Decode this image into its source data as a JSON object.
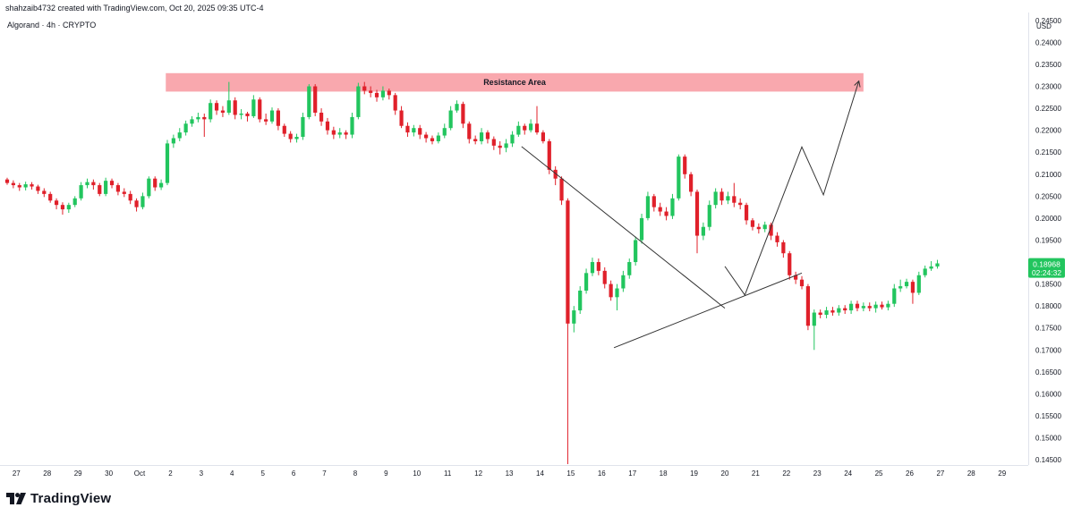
{
  "header": {
    "credit": "shahzaib4732 created with TradingView.com, Oct 20, 2025 09:35 UTC-4",
    "symbol": "Algorand · 4h · CRYPTO"
  },
  "brand": {
    "name": "TradingView",
    "icon": "tradingview-logo-icon"
  },
  "colors": {
    "up": "#22c55e",
    "down": "#e0202a",
    "resistance_fill": "#f9a8ae",
    "price_badge": "#22c55e",
    "line": "#333333"
  },
  "chart_data": {
    "type": "candlestick",
    "currency": "USD",
    "x_labels": [
      "27",
      "28",
      "29",
      "30",
      "Oct",
      "2",
      "3",
      "4",
      "5",
      "6",
      "7",
      "8",
      "9",
      "10",
      "11",
      "12",
      "13",
      "14",
      "15",
      "16",
      "17",
      "18",
      "19",
      "20",
      "21",
      "22",
      "23",
      "24",
      "25",
      "26",
      "27",
      "28",
      "29"
    ],
    "y_ticks": [
      "0.24500",
      "0.24000",
      "0.23500",
      "0.23000",
      "0.22500",
      "0.22000",
      "0.21500",
      "0.21000",
      "0.20500",
      "0.20000",
      "0.19500",
      "0.19000",
      "0.18500",
      "0.18000",
      "0.17500",
      "0.17000",
      "0.16500",
      "0.16000",
      "0.15500",
      "0.15000",
      "0.14500"
    ],
    "ylim": [
      0.1438,
      0.2468
    ],
    "xlim_days": [
      -0.3,
      32.85
    ],
    "current_price": {
      "price": "0.18968",
      "countdown": "02:24:32",
      "value": 0.18968
    },
    "resistance": {
      "label": "Resistance Area",
      "x0": 4.85,
      "x1": 27.5,
      "y0": 0.2288,
      "y1": 0.233
    },
    "trendlines": [
      {
        "name": "descending-resistance-line",
        "points": [
          [
            16.4,
            0.2163
          ],
          [
            23.0,
            0.1795
          ]
        ]
      },
      {
        "name": "ascending-support-line",
        "points": [
          [
            19.4,
            0.1705
          ],
          [
            25.5,
            0.1875
          ]
        ]
      }
    ],
    "projection": [
      [
        23.0,
        0.189
      ],
      [
        23.65,
        0.1825
      ],
      [
        25.5,
        0.2162
      ],
      [
        26.2,
        0.2053
      ],
      [
        27.35,
        0.2312
      ]
    ],
    "candles": [
      [
        -0.3,
        0.2088,
        0.208,
        0.2092,
        0.2076
      ],
      [
        -0.1,
        0.208,
        0.2075,
        0.2086,
        0.2068
      ],
      [
        0.1,
        0.2075,
        0.207,
        0.208,
        0.2062
      ],
      [
        0.3,
        0.207,
        0.2077,
        0.2083,
        0.2063
      ],
      [
        0.5,
        0.2077,
        0.2072,
        0.2082,
        0.2065
      ],
      [
        0.7,
        0.2072,
        0.2062,
        0.2076,
        0.2055
      ],
      [
        0.9,
        0.2062,
        0.2055,
        0.2068,
        0.2048
      ],
      [
        1.1,
        0.2055,
        0.204,
        0.206,
        0.2035
      ],
      [
        1.3,
        0.204,
        0.203,
        0.2045,
        0.202
      ],
      [
        1.5,
        0.203,
        0.202,
        0.2036,
        0.2008
      ],
      [
        1.7,
        0.202,
        0.203,
        0.2035,
        0.2012
      ],
      [
        1.9,
        0.203,
        0.2045,
        0.205,
        0.2025
      ],
      [
        2.1,
        0.2045,
        0.2075,
        0.2082,
        0.204
      ],
      [
        2.3,
        0.2075,
        0.2082,
        0.209,
        0.2068
      ],
      [
        2.5,
        0.2082,
        0.2075,
        0.2088,
        0.2065
      ],
      [
        2.7,
        0.2075,
        0.2055,
        0.208,
        0.205
      ],
      [
        2.9,
        0.2055,
        0.2085,
        0.2092,
        0.205
      ],
      [
        3.1,
        0.2085,
        0.2075,
        0.209,
        0.2068
      ],
      [
        3.3,
        0.2075,
        0.206,
        0.208,
        0.2052
      ],
      [
        3.5,
        0.206,
        0.2055,
        0.2068,
        0.2048
      ],
      [
        3.7,
        0.2055,
        0.204,
        0.2062,
        0.2032
      ],
      [
        3.9,
        0.204,
        0.2025,
        0.2045,
        0.2015
      ],
      [
        4.1,
        0.2025,
        0.205,
        0.2058,
        0.202
      ],
      [
        4.3,
        0.205,
        0.209,
        0.2095,
        0.2045
      ],
      [
        4.5,
        0.209,
        0.207,
        0.2095,
        0.2062
      ],
      [
        4.7,
        0.207,
        0.208,
        0.2088,
        0.2064
      ],
      [
        4.9,
        0.208,
        0.217,
        0.2178,
        0.2075
      ],
      [
        5.1,
        0.217,
        0.2182,
        0.219,
        0.216
      ],
      [
        5.3,
        0.2182,
        0.2195,
        0.2205,
        0.2175
      ],
      [
        5.5,
        0.2195,
        0.2215,
        0.2222,
        0.2188
      ],
      [
        5.7,
        0.2215,
        0.2225,
        0.2232,
        0.2208
      ],
      [
        5.9,
        0.2225,
        0.223,
        0.224,
        0.2218
      ],
      [
        6.1,
        0.223,
        0.2225,
        0.2238,
        0.2185
      ],
      [
        6.3,
        0.2225,
        0.2262,
        0.227,
        0.2218
      ],
      [
        6.5,
        0.2262,
        0.2245,
        0.2268,
        0.2235
      ],
      [
        6.7,
        0.2245,
        0.224,
        0.2255,
        0.223
      ],
      [
        6.9,
        0.224,
        0.2268,
        0.231,
        0.2235
      ],
      [
        7.1,
        0.2268,
        0.2235,
        0.2275,
        0.2225
      ],
      [
        7.3,
        0.2235,
        0.2238,
        0.2248,
        0.2225
      ],
      [
        7.5,
        0.2238,
        0.2232,
        0.2242,
        0.222
      ],
      [
        7.7,
        0.2232,
        0.227,
        0.228,
        0.2228
      ],
      [
        7.9,
        0.227,
        0.2225,
        0.2275,
        0.2218
      ],
      [
        8.1,
        0.2225,
        0.222,
        0.2238,
        0.2212
      ],
      [
        8.3,
        0.222,
        0.2245,
        0.2252,
        0.2215
      ],
      [
        8.5,
        0.2245,
        0.221,
        0.225,
        0.22
      ],
      [
        8.7,
        0.221,
        0.2192,
        0.2215,
        0.2185
      ],
      [
        8.9,
        0.2192,
        0.218,
        0.2198,
        0.2172
      ],
      [
        9.1,
        0.218,
        0.2185,
        0.2192,
        0.2172
      ],
      [
        9.3,
        0.2185,
        0.223,
        0.224,
        0.2178
      ],
      [
        9.5,
        0.223,
        0.23,
        0.2305,
        0.2225
      ],
      [
        9.7,
        0.23,
        0.224,
        0.2305,
        0.2232
      ],
      [
        9.9,
        0.224,
        0.222,
        0.225,
        0.221
      ],
      [
        10.1,
        0.222,
        0.22,
        0.2228,
        0.219
      ],
      [
        10.3,
        0.22,
        0.219,
        0.2208,
        0.218
      ],
      [
        10.5,
        0.219,
        0.2195,
        0.2205,
        0.2182
      ],
      [
        10.7,
        0.2195,
        0.219,
        0.22,
        0.218
      ],
      [
        10.9,
        0.219,
        0.223,
        0.224,
        0.2182
      ],
      [
        11.1,
        0.223,
        0.23,
        0.2308,
        0.2225
      ],
      [
        11.3,
        0.23,
        0.229,
        0.231,
        0.2282
      ],
      [
        11.5,
        0.229,
        0.2285,
        0.23,
        0.2275
      ],
      [
        11.7,
        0.2285,
        0.2275,
        0.2292,
        0.2265
      ],
      [
        11.9,
        0.2275,
        0.229,
        0.23,
        0.2268
      ],
      [
        12.1,
        0.229,
        0.228,
        0.2295,
        0.227
      ],
      [
        12.3,
        0.228,
        0.2245,
        0.2285,
        0.2235
      ],
      [
        12.5,
        0.2245,
        0.221,
        0.2255,
        0.2205
      ],
      [
        12.7,
        0.221,
        0.2195,
        0.2218,
        0.2185
      ],
      [
        12.9,
        0.2195,
        0.2205,
        0.2212,
        0.2186
      ],
      [
        13.1,
        0.2205,
        0.219,
        0.2212,
        0.218
      ],
      [
        13.3,
        0.219,
        0.2182,
        0.2196,
        0.2172
      ],
      [
        13.5,
        0.2182,
        0.2175,
        0.2188,
        0.2168
      ],
      [
        13.7,
        0.2175,
        0.2188,
        0.2195,
        0.217
      ],
      [
        13.9,
        0.2188,
        0.2205,
        0.2215,
        0.2182
      ],
      [
        14.1,
        0.2205,
        0.2245,
        0.2255,
        0.22
      ],
      [
        14.3,
        0.2245,
        0.226,
        0.2268,
        0.224
      ],
      [
        14.5,
        0.226,
        0.2215,
        0.2265,
        0.2205
      ],
      [
        14.7,
        0.2215,
        0.218,
        0.222,
        0.217
      ],
      [
        14.9,
        0.218,
        0.2175,
        0.2188,
        0.2168
      ],
      [
        15.1,
        0.2175,
        0.2195,
        0.2205,
        0.2168
      ],
      [
        15.3,
        0.2195,
        0.218,
        0.22,
        0.217
      ],
      [
        15.5,
        0.218,
        0.2165,
        0.2186,
        0.2155
      ],
      [
        15.7,
        0.2165,
        0.216,
        0.2175,
        0.2145
      ],
      [
        15.9,
        0.216,
        0.217,
        0.218,
        0.215
      ],
      [
        16.1,
        0.217,
        0.219,
        0.2198,
        0.2162
      ],
      [
        16.3,
        0.219,
        0.221,
        0.222,
        0.2185
      ],
      [
        16.5,
        0.221,
        0.22,
        0.2215,
        0.219
      ],
      [
        16.7,
        0.22,
        0.2215,
        0.2225,
        0.2195
      ],
      [
        16.9,
        0.2215,
        0.2195,
        0.2255,
        0.219
      ],
      [
        17.1,
        0.2195,
        0.2175,
        0.22,
        0.217
      ],
      [
        17.3,
        0.2175,
        0.211,
        0.218,
        0.21
      ],
      [
        17.5,
        0.211,
        0.209,
        0.2118,
        0.2075
      ],
      [
        17.7,
        0.209,
        0.204,
        0.2095,
        0.203
      ],
      [
        17.9,
        0.204,
        0.176,
        0.2045,
        0.144
      ],
      [
        18.1,
        0.176,
        0.179,
        0.18,
        0.174
      ],
      [
        18.3,
        0.179,
        0.1835,
        0.1845,
        0.1782
      ],
      [
        18.5,
        0.1835,
        0.1875,
        0.1885,
        0.1828
      ],
      [
        18.7,
        0.1875,
        0.19,
        0.191,
        0.1868
      ],
      [
        18.9,
        0.19,
        0.188,
        0.1908,
        0.187
      ],
      [
        19.1,
        0.188,
        0.185,
        0.1888,
        0.184
      ],
      [
        19.3,
        0.185,
        0.182,
        0.1858,
        0.1812
      ],
      [
        19.5,
        0.182,
        0.184,
        0.185,
        0.179
      ],
      [
        19.7,
        0.184,
        0.187,
        0.188,
        0.1832
      ],
      [
        19.9,
        0.187,
        0.19,
        0.1908,
        0.1862
      ],
      [
        20.1,
        0.19,
        0.195,
        0.1958,
        0.1892
      ],
      [
        20.3,
        0.195,
        0.2,
        0.201,
        0.1942
      ],
      [
        20.5,
        0.2,
        0.205,
        0.206,
        0.1995
      ],
      [
        20.7,
        0.205,
        0.2025,
        0.2055,
        0.2015
      ],
      [
        20.9,
        0.2025,
        0.2015,
        0.2035,
        0.2005
      ],
      [
        21.1,
        0.2015,
        0.2005,
        0.2025,
        0.1995
      ],
      [
        21.3,
        0.2005,
        0.2045,
        0.2055,
        0.1998
      ],
      [
        21.5,
        0.2045,
        0.214,
        0.2145,
        0.204
      ],
      [
        21.7,
        0.214,
        0.21,
        0.2145,
        0.209
      ],
      [
        21.9,
        0.21,
        0.206,
        0.2105,
        0.205
      ],
      [
        22.1,
        0.206,
        0.196,
        0.2065,
        0.192
      ],
      [
        22.3,
        0.196,
        0.198,
        0.199,
        0.195
      ],
      [
        22.5,
        0.198,
        0.203,
        0.204,
        0.1972
      ],
      [
        22.7,
        0.203,
        0.206,
        0.2068,
        0.2022
      ],
      [
        22.9,
        0.206,
        0.204,
        0.2068,
        0.203
      ],
      [
        23.1,
        0.204,
        0.205,
        0.206,
        0.2032
      ],
      [
        23.3,
        0.205,
        0.2035,
        0.208,
        0.2025
      ],
      [
        23.5,
        0.2035,
        0.203,
        0.2045,
        0.202
      ],
      [
        23.7,
        0.203,
        0.1995,
        0.2035,
        0.1985
      ],
      [
        23.9,
        0.1995,
        0.198,
        0.2,
        0.1972
      ],
      [
        24.1,
        0.198,
        0.1975,
        0.1988,
        0.1965
      ],
      [
        24.3,
        0.1975,
        0.1985,
        0.1992,
        0.1968
      ],
      [
        24.5,
        0.1985,
        0.196,
        0.199,
        0.195
      ],
      [
        24.7,
        0.196,
        0.1945,
        0.1968,
        0.1935
      ],
      [
        24.9,
        0.1945,
        0.192,
        0.195,
        0.191
      ],
      [
        25.1,
        0.192,
        0.187,
        0.1925,
        0.186
      ],
      [
        25.3,
        0.187,
        0.186,
        0.1878,
        0.185
      ],
      [
        25.5,
        0.186,
        0.1845,
        0.1868,
        0.1838
      ],
      [
        25.7,
        0.1845,
        0.1755,
        0.185,
        0.1745
      ],
      [
        25.9,
        0.1755,
        0.1785,
        0.1792,
        0.17
      ],
      [
        26.1,
        0.1785,
        0.178,
        0.1792,
        0.1772
      ],
      [
        26.3,
        0.178,
        0.179,
        0.1798,
        0.1772
      ],
      [
        26.5,
        0.179,
        0.1785,
        0.1798,
        0.1778
      ],
      [
        26.7,
        0.1785,
        0.1795,
        0.1802,
        0.1778
      ],
      [
        26.9,
        0.1795,
        0.179,
        0.1802,
        0.1782
      ],
      [
        27.1,
        0.179,
        0.1805,
        0.1812,
        0.1782
      ],
      [
        27.3,
        0.1805,
        0.1795,
        0.1812,
        0.1788
      ],
      [
        27.5,
        0.1795,
        0.18,
        0.1808,
        0.1788
      ],
      [
        27.7,
        0.18,
        0.1795,
        0.1808,
        0.1788
      ],
      [
        27.9,
        0.1795,
        0.1803,
        0.181,
        0.1785
      ],
      [
        28.1,
        0.1803,
        0.1797,
        0.181,
        0.1792
      ],
      [
        28.3,
        0.1797,
        0.1805,
        0.1812,
        0.179
      ],
      [
        28.5,
        0.1805,
        0.184,
        0.185,
        0.1798
      ],
      [
        28.7,
        0.184,
        0.1845,
        0.186,
        0.1832
      ],
      [
        28.9,
        0.1845,
        0.1855,
        0.1862,
        0.184
      ],
      [
        29.1,
        0.1855,
        0.183,
        0.186,
        0.1805
      ],
      [
        29.3,
        0.183,
        0.187,
        0.1878,
        0.1825
      ],
      [
        29.5,
        0.187,
        0.1885,
        0.1892,
        0.1865
      ],
      [
        29.7,
        0.1885,
        0.189,
        0.1902,
        0.188
      ],
      [
        29.9,
        0.189,
        0.1897,
        0.1905,
        0.1885
      ]
    ]
  }
}
